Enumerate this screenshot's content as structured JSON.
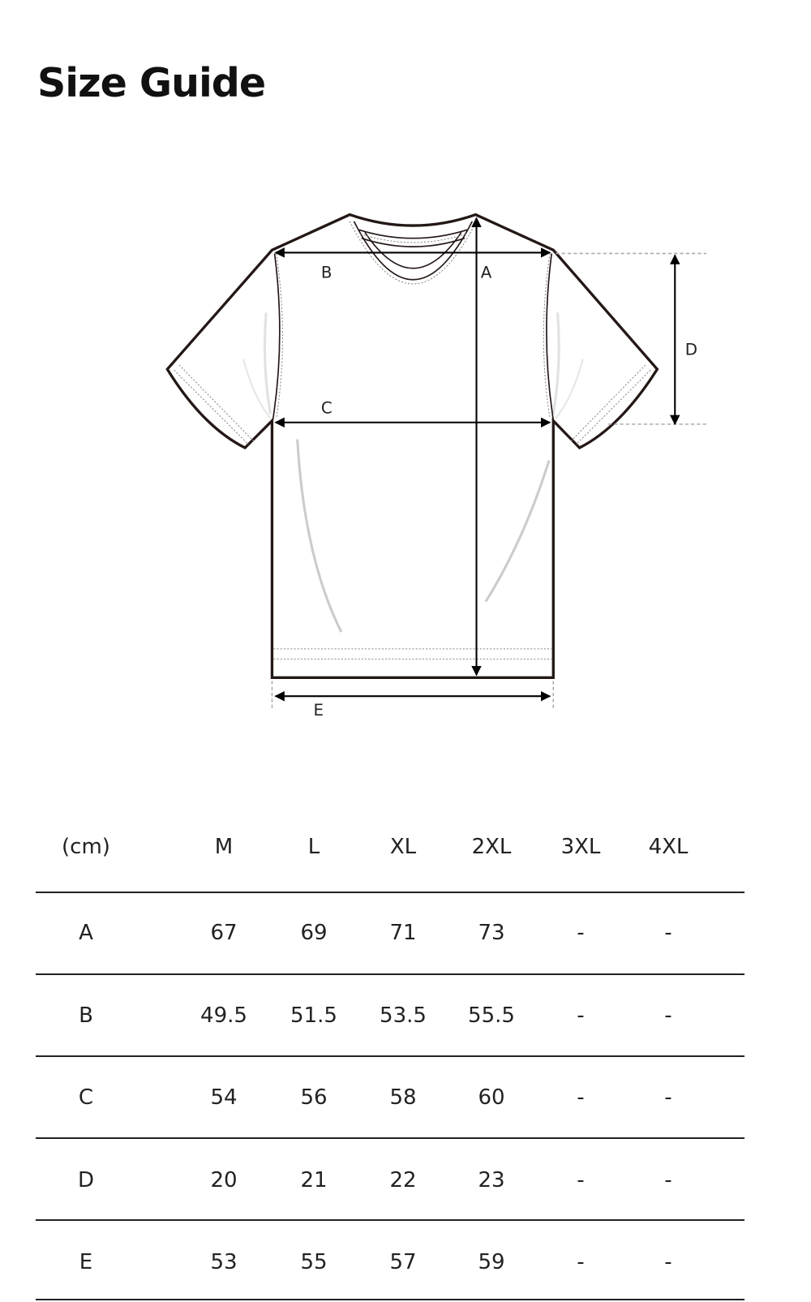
{
  "page": {
    "title": "Size Guide"
  },
  "diagram": {
    "labels": {
      "A": "A",
      "B": "B",
      "C": "C",
      "D": "D",
      "E": "E"
    },
    "line_color": "#231815"
  },
  "table": {
    "unit_label": "(cm)",
    "sizes": [
      "M",
      "L",
      "XL",
      "2XL",
      "3XL",
      "4XL"
    ],
    "rows": [
      {
        "label": "A",
        "values": [
          "67",
          "69",
          "71",
          "73",
          "-",
          "-"
        ]
      },
      {
        "label": "B",
        "values": [
          "49.5",
          "51.5",
          "53.5",
          "55.5",
          "-",
          "-"
        ]
      },
      {
        "label": "C",
        "values": [
          "54",
          "56",
          "58",
          "60",
          "-",
          "-"
        ]
      },
      {
        "label": "D",
        "values": [
          "20",
          "21",
          "22",
          "23",
          "-",
          "-"
        ]
      },
      {
        "label": "E",
        "values": [
          "53",
          "55",
          "57",
          "59",
          "-",
          "-"
        ]
      }
    ]
  }
}
